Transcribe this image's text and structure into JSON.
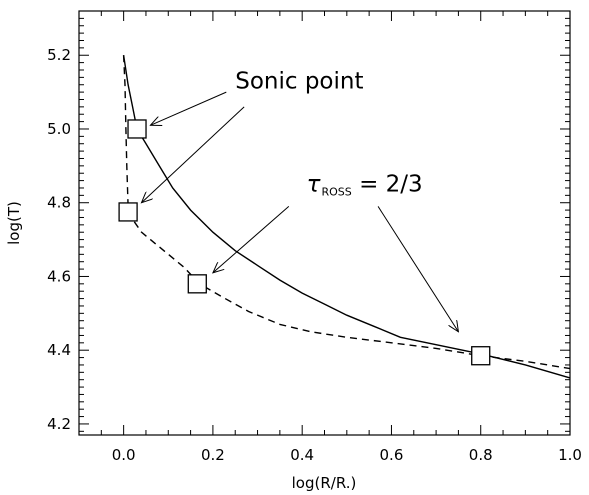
{
  "chart_data": {
    "type": "line",
    "title": "",
    "xlabel": "log(R/R.)",
    "ylabel": "log(T)",
    "xlim": [
      -0.1,
      1.0
    ],
    "ylim": [
      4.17,
      5.32
    ],
    "x_ticks": [
      "0.0",
      "0.2",
      "0.4",
      "0.6",
      "0.8",
      "1.0"
    ],
    "x_tick_values": [
      0.0,
      0.2,
      0.4,
      0.6,
      0.8,
      1.0
    ],
    "y_ticks": [
      "4.2",
      "4.4",
      "4.6",
      "4.8",
      "5.0",
      "5.2"
    ],
    "y_tick_values": [
      4.2,
      4.4,
      4.6,
      4.8,
      5.0,
      5.2
    ],
    "grid": false,
    "legend": "none",
    "series": [
      {
        "style": "solid",
        "x": [
          0.0,
          0.01,
          0.02,
          0.03,
          0.05,
          0.08,
          0.11,
          0.15,
          0.2,
          0.25,
          0.3,
          0.35,
          0.4,
          0.45,
          0.5,
          0.56,
          0.62,
          0.7,
          0.8,
          0.9,
          1.0
        ],
        "y": [
          5.2,
          5.12,
          5.06,
          5.0,
          4.96,
          4.9,
          4.84,
          4.78,
          4.72,
          4.67,
          4.63,
          4.59,
          4.555,
          4.525,
          4.495,
          4.465,
          4.435,
          4.415,
          4.39,
          4.36,
          4.325
        ]
      },
      {
        "style": "dashed",
        "x": [
          0.0,
          0.003,
          0.005,
          0.007,
          0.01,
          0.02,
          0.04,
          0.07,
          0.1,
          0.135,
          0.17,
          0.22,
          0.28,
          0.35,
          0.42,
          0.5,
          0.6,
          0.7,
          0.8,
          0.9,
          1.0
        ],
        "y": [
          5.2,
          5.12,
          5.0,
          4.9,
          4.79,
          4.755,
          4.72,
          4.69,
          4.66,
          4.625,
          4.58,
          4.545,
          4.505,
          4.47,
          4.45,
          4.435,
          4.42,
          4.405,
          4.385,
          4.37,
          4.35
        ]
      }
    ],
    "markers": [
      {
        "x": 0.03,
        "y": 5.0
      },
      {
        "x": 0.01,
        "y": 4.775
      },
      {
        "x": 0.165,
        "y": 4.58
      },
      {
        "x": 0.8,
        "y": 4.385
      }
    ],
    "annotations": {
      "sonic": {
        "text": "Sonic point",
        "pos": [
          0.25,
          5.11
        ],
        "arrows": [
          {
            "from": [
              0.23,
              5.1
            ],
            "to": [
              0.06,
              5.01
            ]
          },
          {
            "from": [
              0.27,
              5.06
            ],
            "to": [
              0.04,
              4.8
            ]
          }
        ]
      },
      "tau": {
        "symbol": "τ",
        "sub": "ROSS",
        "rest": " = 2/3",
        "pos": [
          0.41,
          4.83
        ],
        "arrows": [
          {
            "from": [
              0.37,
              4.79
            ],
            "to": [
              0.2,
              4.61
            ]
          },
          {
            "from": [
              0.57,
              4.79
            ],
            "to": [
              0.75,
              4.45
            ]
          }
        ]
      }
    }
  }
}
